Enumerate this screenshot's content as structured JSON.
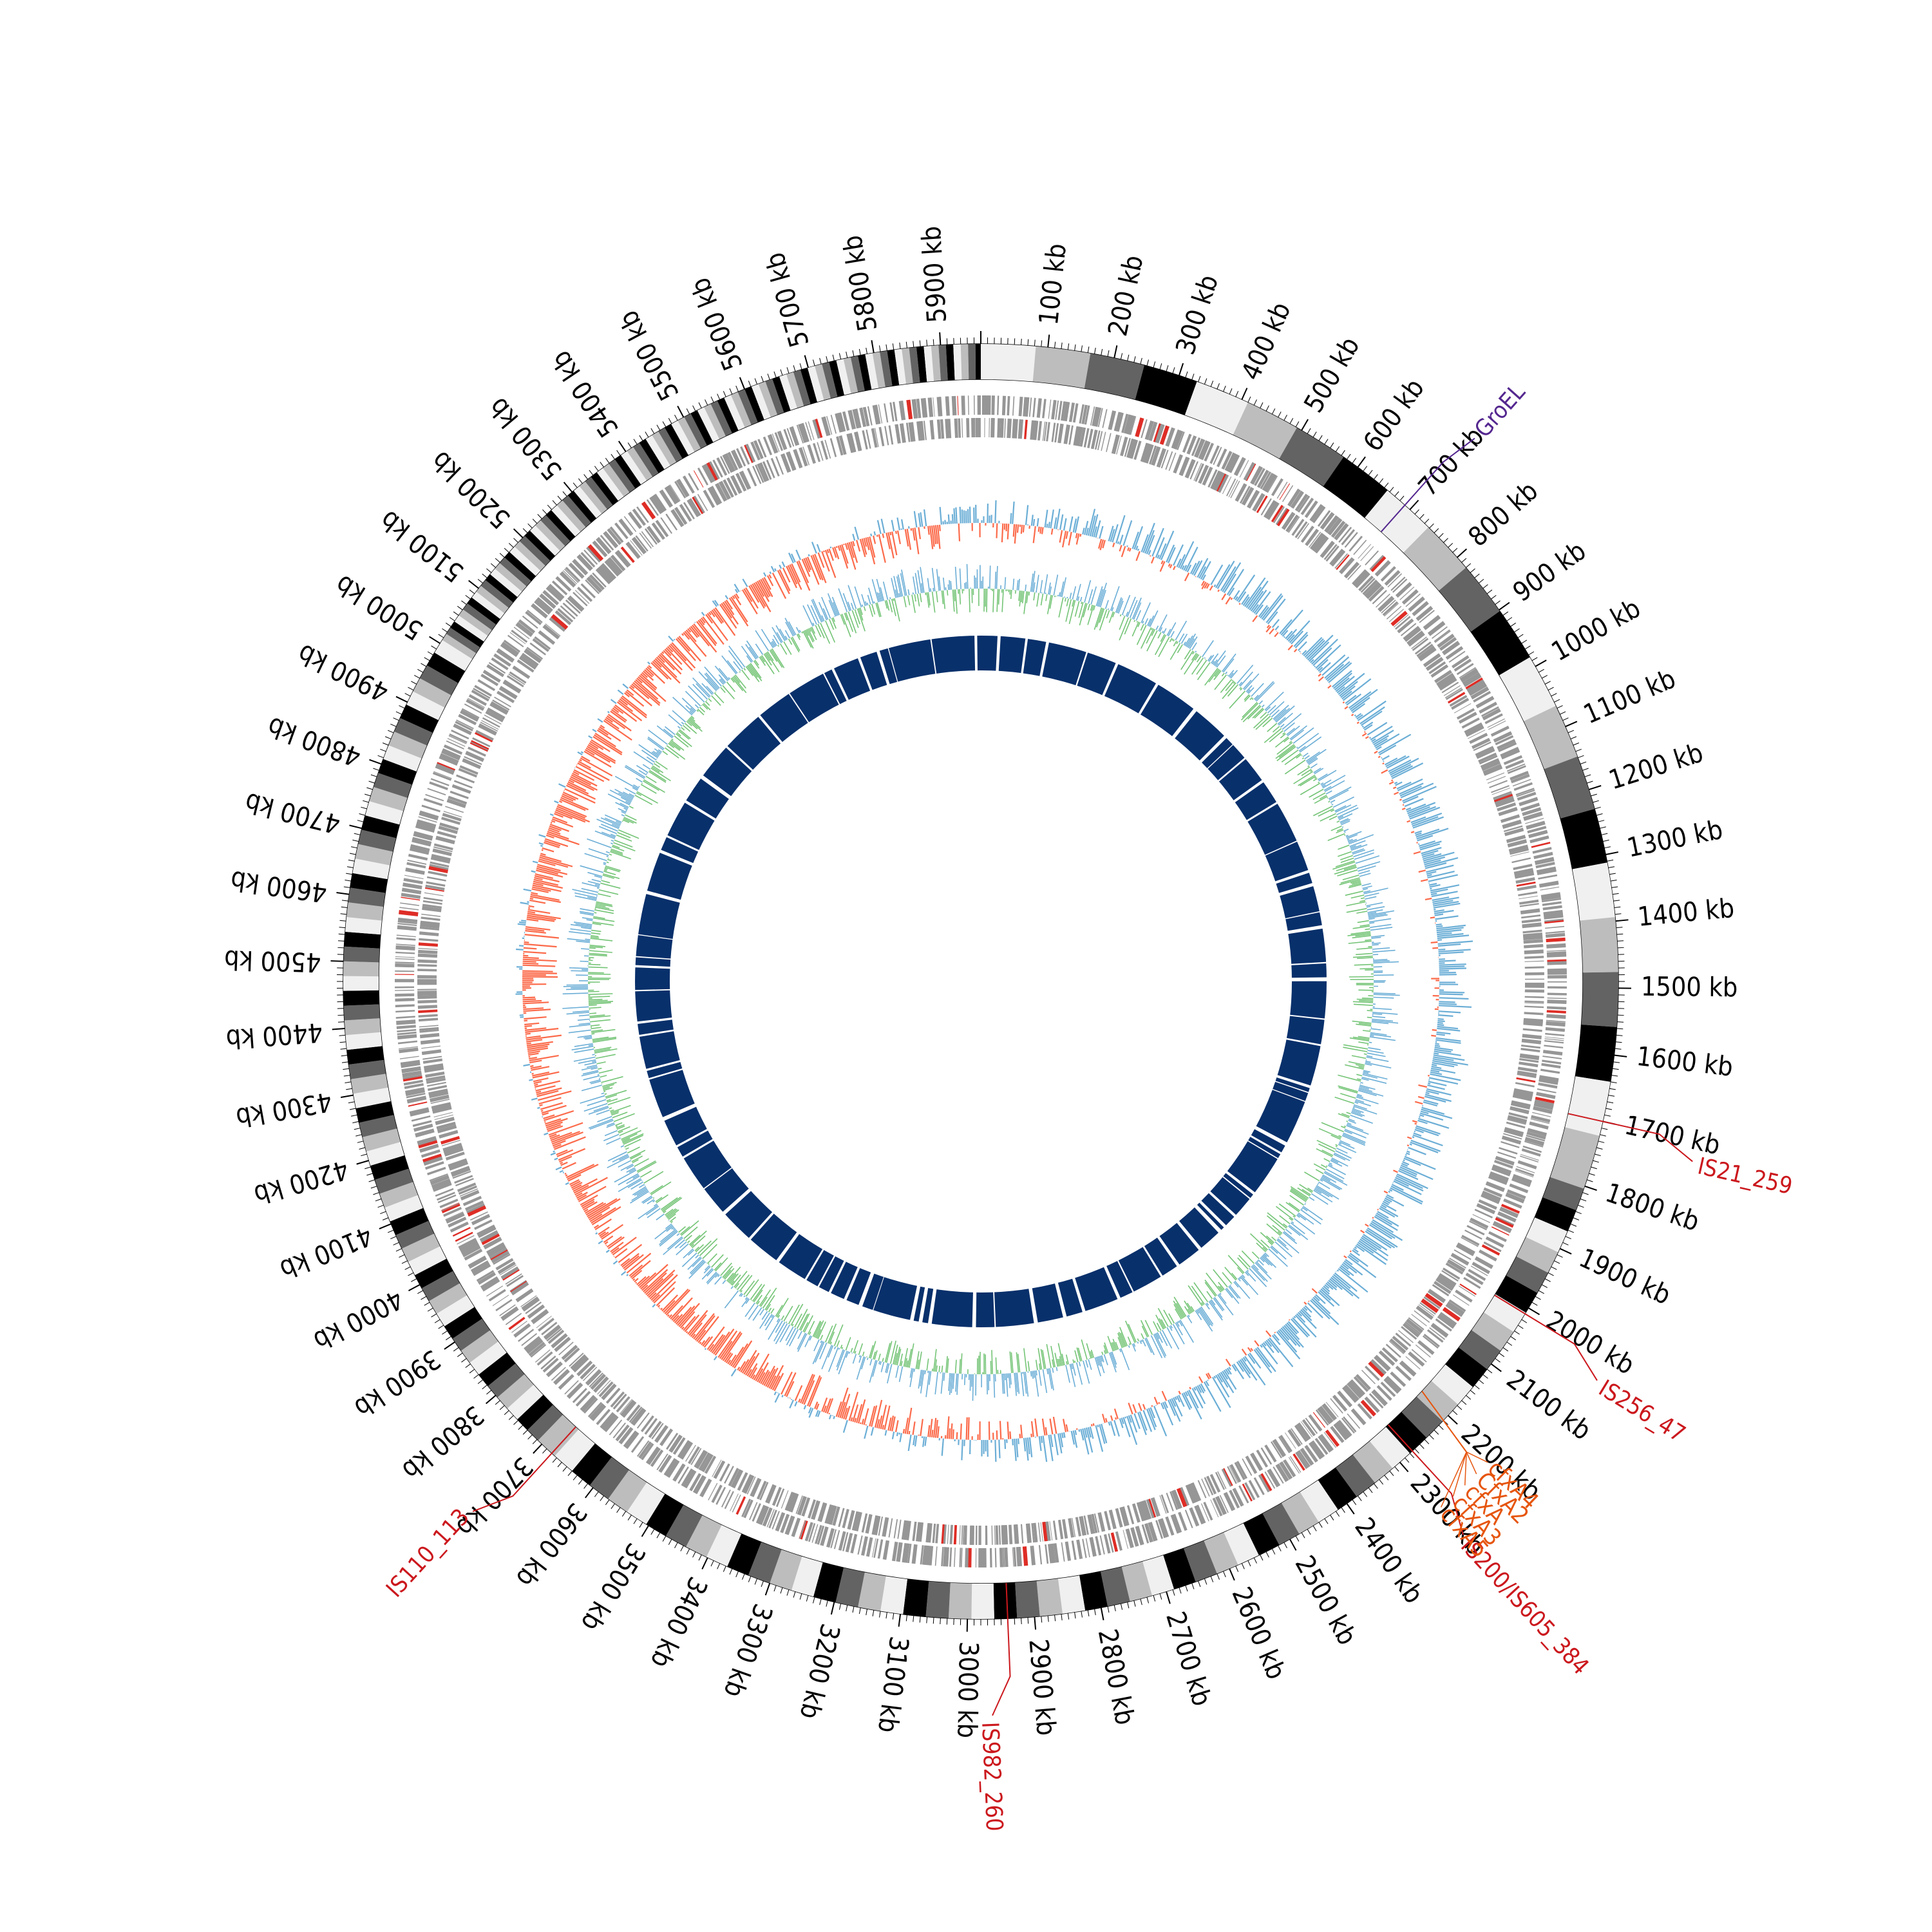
{
  "genome": {
    "length_kb": 5960,
    "tick_labels": [
      "100 kb",
      "200 kb",
      "300 kb",
      "400 kb",
      "500 kb",
      "600 kb",
      "700 kb",
      "800 kb",
      "900 kb",
      "1000 kb",
      "1100 kb",
      "1200 kb",
      "1300 kb",
      "1400 kb",
      "1500 kb",
      "1600 kb",
      "1700 kb",
      "1800 kb",
      "1900 kb",
      "2000 kb",
      "2100 kb",
      "2200 kb",
      "2300 kb",
      "2400 kb",
      "2500 kb",
      "2600 kb",
      "2700 kb",
      "2800 kb",
      "2900 kb",
      "3000 kb",
      "3100 kb",
      "3200 kb",
      "3300 kb",
      "3400 kb",
      "3500 kb",
      "3600 kb",
      "3700 kb",
      "3800 kb",
      "3900 kb",
      "4000 kb",
      "4100 kb",
      "4200 kb",
      "4300 kb",
      "4400 kb",
      "4500 kb",
      "4600 kb",
      "4700 kb",
      "4800 kb",
      "4900 kb",
      "5000 kb",
      "5100 kb",
      "5200 kb",
      "5300 kb",
      "5400 kb",
      "5500 kb",
      "5600 kb",
      "5700 kb",
      "5800 kb",
      "5900 kb"
    ]
  },
  "colors": {
    "gc_skew_positive": "#6baed6",
    "gc_skew_negative": "#fb6a4a",
    "gc_content": "#74c476",
    "inner_ring": "#08306b",
    "gene_marks": "#969696",
    "is_element": "#cb181d",
    "groel": "#54278f",
    "cfx": "#e6550d"
  },
  "annotations": [
    {
      "label": "GroEL",
      "kind": "groel",
      "position_kb": 690
    },
    {
      "label": "IS21_259",
      "kind": "is_element",
      "position_kb": 1700
    },
    {
      "label": "IS256_47",
      "kind": "is_element",
      "position_kb": 2010
    },
    {
      "label": "IS200/IS605_384",
      "kind": "is_element",
      "position_kb": 2275
    },
    {
      "label": "IS982_260",
      "kind": "is_element",
      "position_kb": 2940
    },
    {
      "label": "IS110_113",
      "kind": "is_element",
      "position_kb": 3680
    }
  ],
  "resistance_genes": {
    "position_kb": 2200,
    "labels": [
      "cfxA4",
      "CfxA2",
      "cfxA",
      "cfxA3",
      "cfxA5"
    ]
  },
  "tracks": [
    "karyotype",
    "gene-marks",
    "gc-skew",
    "gc-content",
    "inner-features"
  ]
}
